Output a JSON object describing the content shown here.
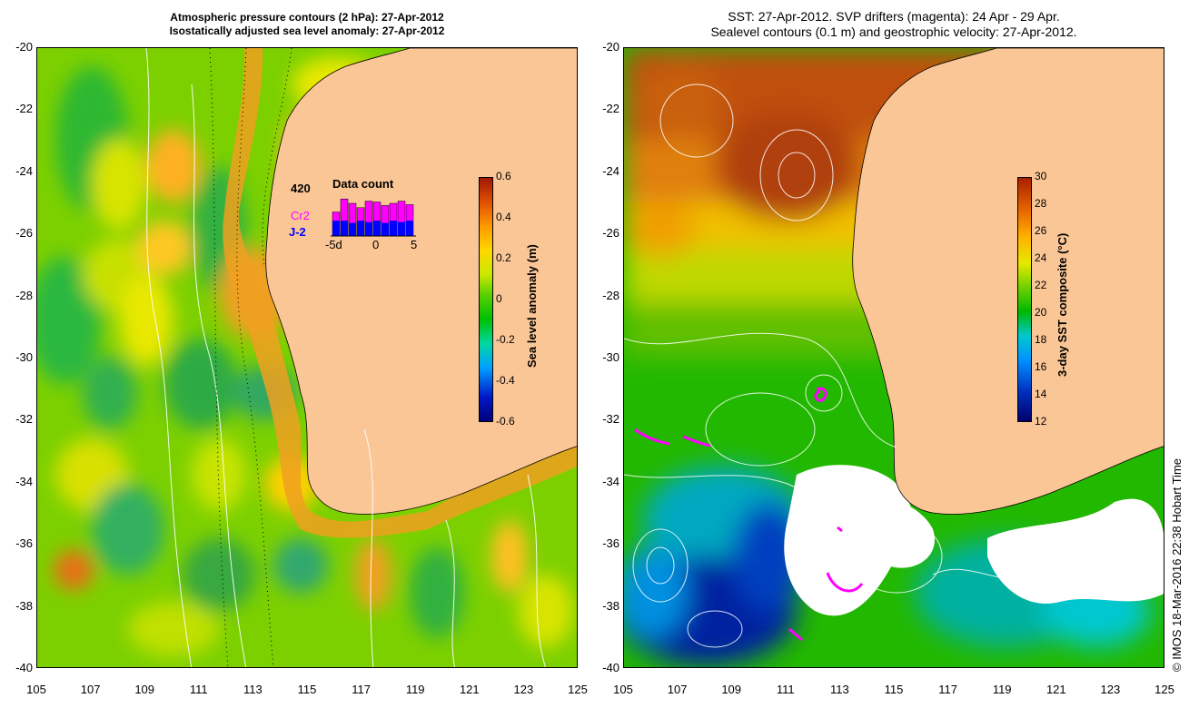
{
  "left_panel": {
    "title_line1": "Atmospheric pressure contours (2 hPa): 27-Apr-2012",
    "title_line2": "Isostatically adjusted sea level anomaly: 27-Apr-2012",
    "colorbar": {
      "label": "Sea level anomaly (m)",
      "ticks": [
        "0.6",
        "0.4",
        "0.2",
        "0",
        "-0.2",
        "-0.4",
        "-0.6"
      ]
    },
    "data_count": {
      "title": "Data count",
      "max_value": "420",
      "satellite1": "Cr2",
      "satellite2": "J-2",
      "axis_labels": [
        "-5d",
        "0",
        "5"
      ],
      "satellite1_color": "#ff00ff",
      "satellite2_color": "#0000ff"
    }
  },
  "right_panel": {
    "title_line1": "SST: 27-Apr-2012. SVP drifters (magenta): 24 Apr - 29 Apr.",
    "title_line2": "Sealevel contours (0.1 m) and geostrophic velocity: 27-Apr-2012.",
    "colorbar": {
      "label": "3-day SST composite (°C)",
      "ticks": [
        "30",
        "28",
        "26",
        "24",
        "22",
        "20",
        "18",
        "16",
        "14",
        "12"
      ]
    }
  },
  "axes": {
    "y_ticks": [
      "-20",
      "-22",
      "-24",
      "-26",
      "-28",
      "-30",
      "-32",
      "-34",
      "-36",
      "-38",
      "-40"
    ],
    "x_ticks": [
      "105",
      "107",
      "109",
      "111",
      "113",
      "115",
      "117",
      "119",
      "121",
      "123",
      "125"
    ]
  },
  "credit": "© IMOS 18-Mar-2016 22:38 Hobart Time",
  "colors": {
    "land": "#fbc696",
    "drifter": "#ff00ff",
    "contour": "#ffffff"
  }
}
